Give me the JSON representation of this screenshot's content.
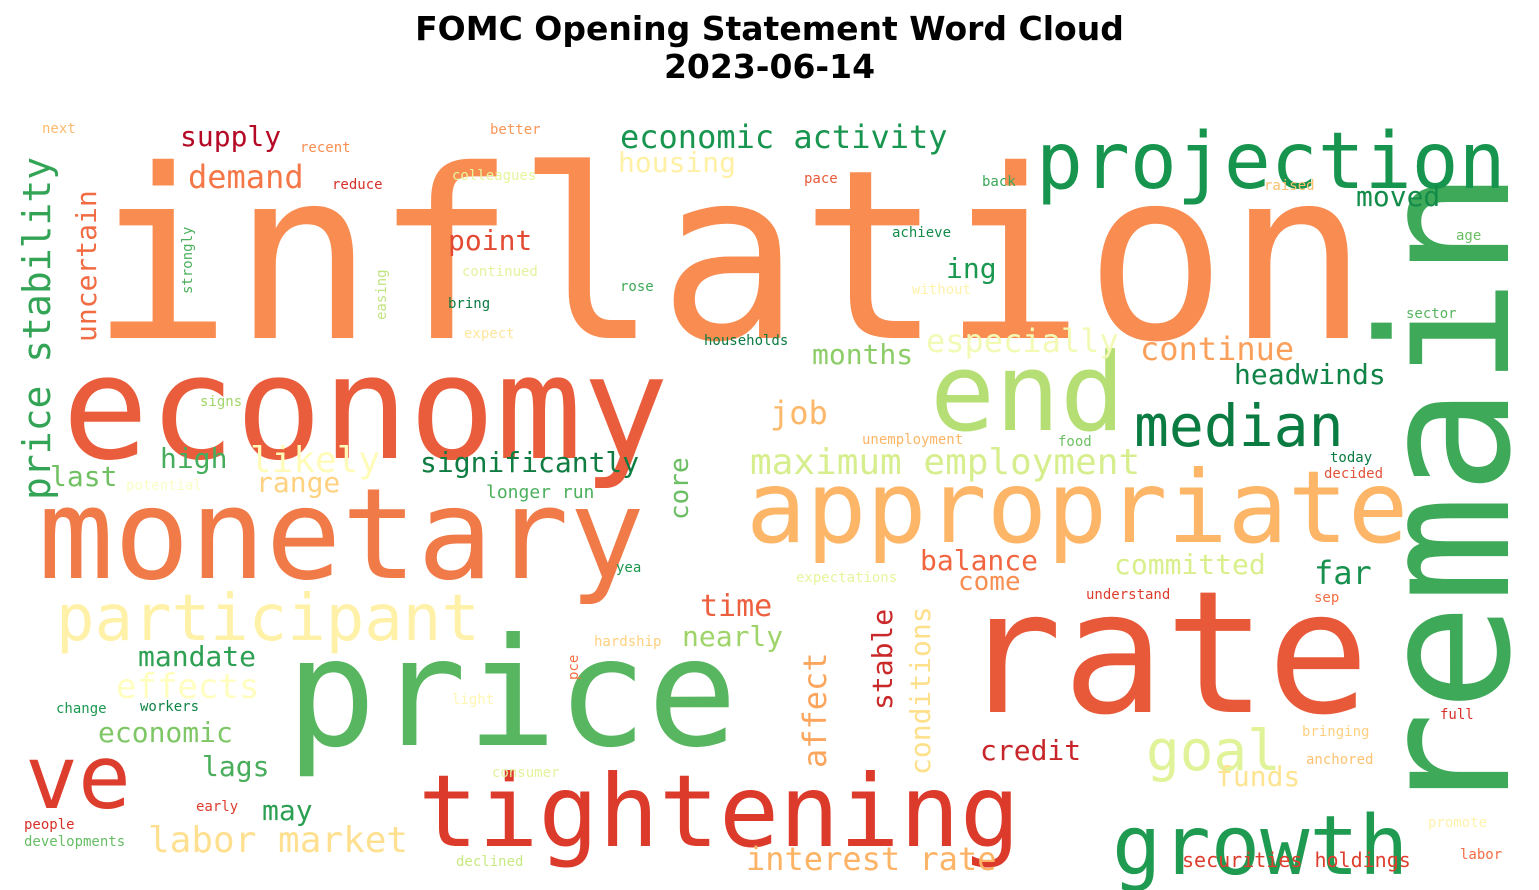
{
  "title": {
    "line1": "FOMC Opening Statement Word Cloud",
    "line2": "2023-06-14"
  },
  "colormap": "RdYlGn",
  "words": [
    {
      "text": "inflation",
      "color": "#f88c51"
    },
    {
      "text": "economy",
      "color": "#e95d3c"
    },
    {
      "text": "monetary",
      "color": "#f07a48"
    },
    {
      "text": "rate",
      "color": "#e8593a"
    },
    {
      "text": "price",
      "color": "#57b65f"
    },
    {
      "text": "remain",
      "color": "#3fa95a"
    },
    {
      "text": "projection",
      "color": "#17954f"
    },
    {
      "text": "end",
      "color": "#b5df74"
    },
    {
      "text": "appropriate",
      "color": "#fdb567"
    },
    {
      "text": "tightening",
      "color": "#dc3b2c"
    },
    {
      "text": "growth",
      "color": "#1e9a51"
    },
    {
      "text": "ve",
      "color": "#dd3d2d"
    },
    {
      "text": "participant",
      "color": "#fff1a8"
    },
    {
      "text": "median",
      "color": "#0a7b41"
    },
    {
      "text": "goal",
      "color": "#e1f399"
    },
    {
      "text": "price stability",
      "color": "#33a456"
    },
    {
      "text": "economic activity",
      "color": "#18954f"
    },
    {
      "text": "supply",
      "color": "#b50a26"
    },
    {
      "text": "demand",
      "color": "#f57747"
    },
    {
      "text": "housing",
      "color": "#fff0a6"
    },
    {
      "text": "uncertain",
      "color": "#f16b43"
    },
    {
      "text": "point",
      "color": "#e34a33"
    },
    {
      "text": "ing",
      "color": "#1a9850"
    },
    {
      "text": "moved",
      "color": "#138c4a"
    },
    {
      "text": "continue",
      "color": "#fba05b"
    },
    {
      "text": "headwinds",
      "color": "#0f8446"
    },
    {
      "text": "especially",
      "color": "#f3fab6"
    },
    {
      "text": "months",
      "color": "#8ccd67"
    },
    {
      "text": "job",
      "color": "#fdb768"
    },
    {
      "text": "high",
      "color": "#45ad5b"
    },
    {
      "text": "likely",
      "color": "#fffbb9"
    },
    {
      "text": "significantly",
      "color": "#0f7c42"
    },
    {
      "text": "maximum employment",
      "color": "#d7ee8e"
    },
    {
      "text": "last",
      "color": "#72c064"
    },
    {
      "text": "range",
      "color": "#fed281"
    },
    {
      "text": "core",
      "color": "#6bbe63"
    },
    {
      "text": "longer run",
      "color": "#4bb05c"
    },
    {
      "text": "balance",
      "color": "#f16640"
    },
    {
      "text": "committed",
      "color": "#d9ef8b"
    },
    {
      "text": "far",
      "color": "#17914d"
    },
    {
      "text": "come",
      "color": "#f98e52"
    },
    {
      "text": "time",
      "color": "#ec5f3f"
    },
    {
      "text": "nearly",
      "color": "#9fd46a"
    },
    {
      "text": "mandate",
      "color": "#2ea053"
    },
    {
      "text": "effects",
      "color": "#fffebe"
    },
    {
      "text": "stable",
      "color": "#c92a29"
    },
    {
      "text": "conditions",
      "color": "#fee08b"
    },
    {
      "text": "affect",
      "color": "#fca55d"
    },
    {
      "text": "economic",
      "color": "#7fc766"
    },
    {
      "text": "lags",
      "color": "#49ad5b"
    },
    {
      "text": "credit",
      "color": "#c72529"
    },
    {
      "text": "goal",
      "color": "#e1f399"
    },
    {
      "text": "funds",
      "color": "#fee491"
    },
    {
      "text": "may",
      "color": "#2b9f52"
    },
    {
      "text": "labor market",
      "color": "#fee090"
    },
    {
      "text": "interest rate",
      "color": "#fdb365"
    },
    {
      "text": "securities holdings",
      "color": "#dd3e2d"
    },
    {
      "text": "next",
      "color": "#fdba6b"
    },
    {
      "text": "recent",
      "color": "#f98e52"
    },
    {
      "text": "better",
      "color": "#fa9656"
    },
    {
      "text": "colleagues",
      "color": "#e6f59d"
    },
    {
      "text": "reduce",
      "color": "#d73027"
    },
    {
      "text": "pace",
      "color": "#e8593a"
    },
    {
      "text": "back",
      "color": "#3aa758"
    },
    {
      "text": "raised",
      "color": "#fdc071"
    },
    {
      "text": "achieve",
      "color": "#138c4a"
    },
    {
      "text": "age",
      "color": "#6bbe63"
    },
    {
      "text": "strongly",
      "color": "#4bb05c"
    },
    {
      "text": "easing",
      "color": "#c0e47f"
    },
    {
      "text": "continued",
      "color": "#e2f39c"
    },
    {
      "text": "rose",
      "color": "#3fa95a"
    },
    {
      "text": "without",
      "color": "#fff2ac"
    },
    {
      "text": "sector",
      "color": "#55b45f"
    },
    {
      "text": "bring",
      "color": "#0a7b41"
    },
    {
      "text": "expect",
      "color": "#fee69b"
    },
    {
      "text": "households",
      "color": "#0a7b41"
    },
    {
      "text": "signs",
      "color": "#a0d56a"
    },
    {
      "text": "unemployment",
      "color": "#fdb567"
    },
    {
      "text": "food",
      "color": "#6ebf63"
    },
    {
      "text": "today",
      "color": "#0a7b41"
    },
    {
      "text": "decided",
      "color": "#e05339"
    },
    {
      "text": "potential",
      "color": "#fbfdc6"
    },
    {
      "text": "yea",
      "color": "#1a9850"
    },
    {
      "text": "expectations",
      "color": "#e6f59d"
    },
    {
      "text": "understand",
      "color": "#dc3e2d"
    },
    {
      "text": "sep",
      "color": "#f46d43"
    },
    {
      "text": "hardship",
      "color": "#fed07f"
    },
    {
      "text": "pce",
      "color": "#f46d43"
    },
    {
      "text": "change",
      "color": "#1a9850"
    },
    {
      "text": "workers",
      "color": "#0f8446"
    },
    {
      "text": "light",
      "color": "#fff6b5"
    },
    {
      "text": "bringing",
      "color": "#fed07f"
    },
    {
      "text": "full",
      "color": "#d73027"
    },
    {
      "text": "anchored",
      "color": "#fdc372"
    },
    {
      "text": "consumer",
      "color": "#e2f39c"
    },
    {
      "text": "early",
      "color": "#dc3e2d"
    },
    {
      "text": "people",
      "color": "#d73027"
    },
    {
      "text": "developments",
      "color": "#66bd63"
    },
    {
      "text": "declined",
      "color": "#c8e982"
    },
    {
      "text": "promote",
      "color": "#fff2ac"
    },
    {
      "text": "labor",
      "color": "#f46d43"
    }
  ]
}
